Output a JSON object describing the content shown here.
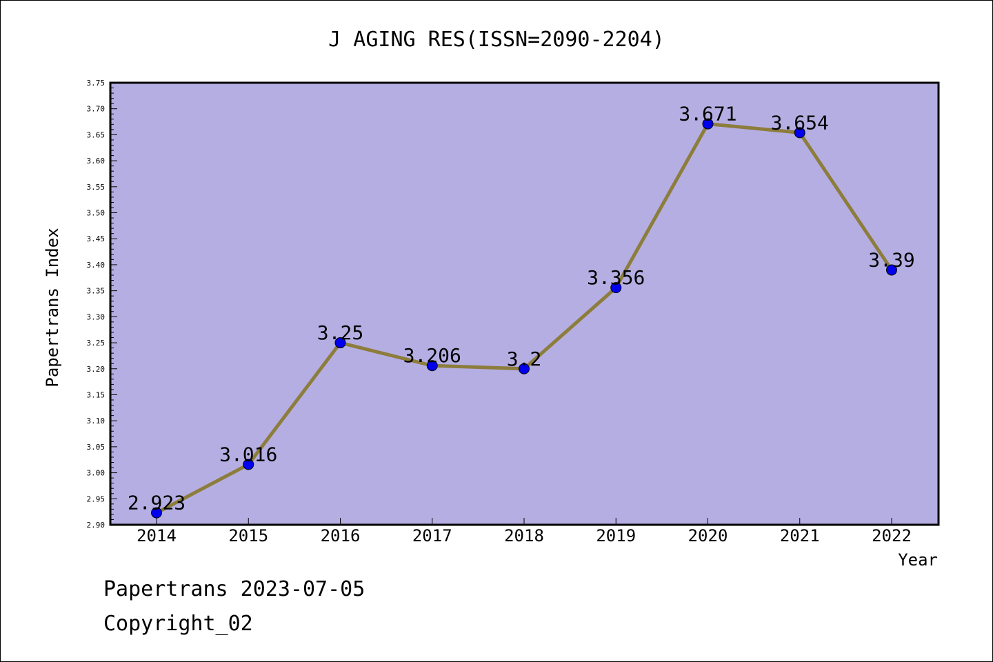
{
  "chart_data": {
    "type": "line",
    "title": "J AGING RES(ISSN=2090-2204)",
    "xlabel": "Year",
    "ylabel": "Papertrans Index",
    "categories": [
      "2014",
      "2015",
      "2016",
      "2017",
      "2018",
      "2019",
      "2020",
      "2021",
      "2022"
    ],
    "series": [
      {
        "values": [
          2.923,
          3.016,
          3.25,
          3.206,
          3.2,
          3.356,
          3.671,
          3.654,
          3.39
        ],
        "labels": [
          "2.923",
          "3.016",
          "3.25",
          "3.206",
          "3.2",
          "3.356",
          "3.671",
          "3.654",
          "3.39"
        ]
      }
    ],
    "ylim": [
      2.9,
      3.75
    ],
    "yticks": [
      "2.90",
      "2.95",
      "3.00",
      "3.05",
      "3.10",
      "3.15",
      "3.20",
      "3.25",
      "3.30",
      "3.35",
      "3.40",
      "3.45",
      "3.50",
      "3.55",
      "3.60",
      "3.65",
      "3.70",
      "3.75"
    ],
    "grid": false,
    "colors": {
      "plot_background": "#b5aee2",
      "line": "#8c7d3c",
      "marker": "#0000ee"
    }
  },
  "footer": {
    "line1": "Papertrans 2023-07-05",
    "line2": "Copyright_02"
  }
}
